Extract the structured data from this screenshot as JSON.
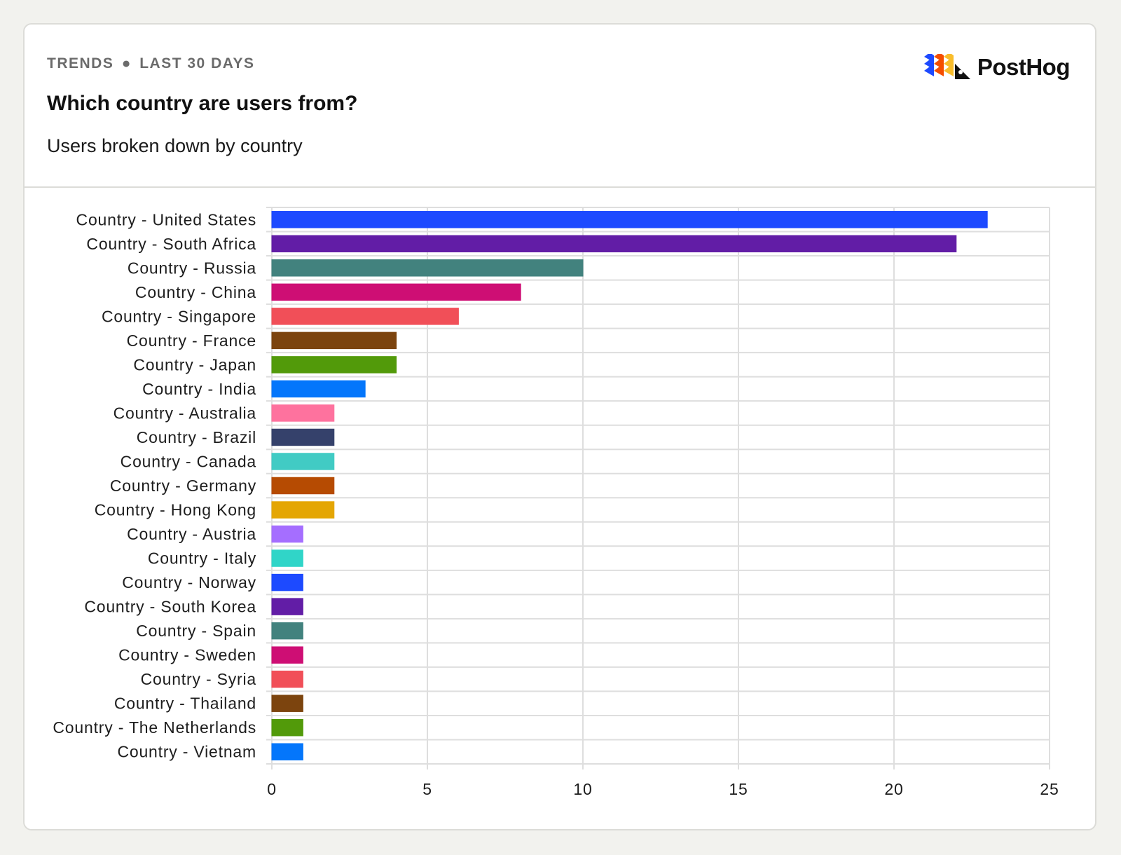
{
  "header": {
    "eyebrow_left": "TRENDS",
    "eyebrow_sep": "●",
    "eyebrow_right": "LAST 30 DAYS",
    "title": "Which country are users from?",
    "subtitle": "Users broken down by country",
    "brand": "PostHog"
  },
  "colors": {
    "logo_stripes": [
      "#1d4aff",
      "#f54e00",
      "#f9bd2b"
    ],
    "grid": "#dedede",
    "axis_text": "#1d1d1d"
  },
  "chart_data": {
    "type": "bar",
    "orientation": "horizontal",
    "categories": [
      "Country - United States",
      "Country - South Africa",
      "Country - Russia",
      "Country - China",
      "Country - Singapore",
      "Country - France",
      "Country - Japan",
      "Country - India",
      "Country - Australia",
      "Country - Brazil",
      "Country - Canada",
      "Country - Germany",
      "Country - Hong Kong",
      "Country - Austria",
      "Country - Italy",
      "Country - Norway",
      "Country - South Korea",
      "Country - Spain",
      "Country - Sweden",
      "Country - Syria",
      "Country - Thailand",
      "Country - The Netherlands",
      "Country - Vietnam"
    ],
    "values": [
      23,
      22,
      10,
      8,
      6,
      4,
      4,
      3,
      2,
      2,
      2,
      2,
      2,
      1,
      1,
      1,
      1,
      1,
      1,
      1,
      1,
      1,
      1
    ],
    "bar_colors": [
      "#1d4aff",
      "#621da6",
      "#42827e",
      "#ce0e74",
      "#f14f58",
      "#7c440e",
      "#529a0a",
      "#0476fb",
      "#fe729e",
      "#35416b",
      "#41cbc4",
      "#b64b02",
      "#e4a604",
      "#a56eff",
      "#30d5c8",
      "#1d4aff",
      "#621da6",
      "#42827e",
      "#ce0e74",
      "#f14f58",
      "#7c440e",
      "#529a0a",
      "#0476fb"
    ],
    "x_ticks": [
      0,
      5,
      10,
      15,
      20,
      25
    ],
    "xlim": [
      0,
      25
    ],
    "grid": true,
    "legend": "none",
    "title": "",
    "xlabel": "",
    "ylabel": ""
  }
}
